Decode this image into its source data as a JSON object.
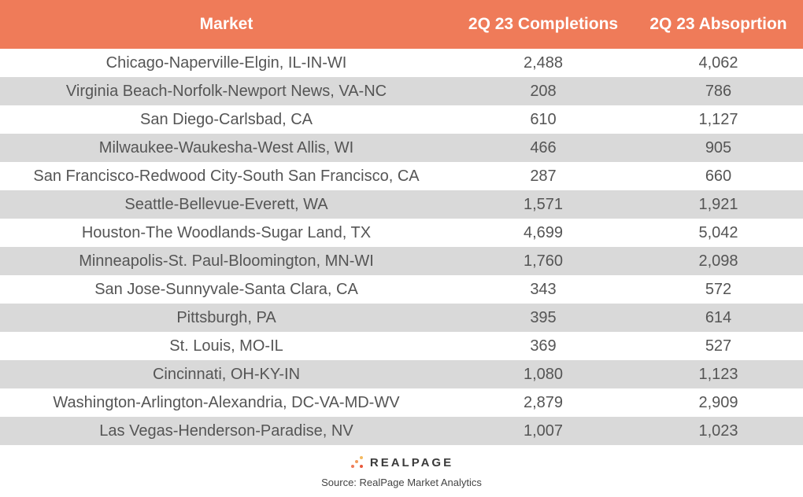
{
  "colors": {
    "header_bg": "#ef7b59",
    "alt_row_bg": "#d9d9d9"
  },
  "columns": {
    "market": "Market",
    "completions": "2Q 23 Completions",
    "absorption": "2Q 23 Absoprtion"
  },
  "rows": [
    {
      "market": "Chicago-Naperville-Elgin, IL-IN-WI",
      "completions": "2,488",
      "absorption": "4,062"
    },
    {
      "market": "Virginia Beach-Norfolk-Newport News, VA-NC",
      "completions": "208",
      "absorption": "786"
    },
    {
      "market": "San Diego-Carlsbad, CA",
      "completions": "610",
      "absorption": "1,127"
    },
    {
      "market": "Milwaukee-Waukesha-West Allis, WI",
      "completions": "466",
      "absorption": "905"
    },
    {
      "market": "San Francisco-Redwood City-South San Francisco, CA",
      "completions": "287",
      "absorption": "660"
    },
    {
      "market": "Seattle-Bellevue-Everett, WA",
      "completions": "1,571",
      "absorption": "1,921"
    },
    {
      "market": "Houston-The Woodlands-Sugar Land, TX",
      "completions": "4,699",
      "absorption": "5,042"
    },
    {
      "market": "Minneapolis-St. Paul-Bloomington, MN-WI",
      "completions": "1,760",
      "absorption": "2,098"
    },
    {
      "market": "San Jose-Sunnyvale-Santa Clara, CA",
      "completions": "343",
      "absorption": "572"
    },
    {
      "market": "Pittsburgh, PA",
      "completions": "395",
      "absorption": "614"
    },
    {
      "market": "St. Louis, MO-IL",
      "completions": "369",
      "absorption": "527"
    },
    {
      "market": "Cincinnati, OH-KY-IN",
      "completions": "1,080",
      "absorption": "1,123"
    },
    {
      "market": "Washington-Arlington-Alexandria, DC-VA-MD-WV",
      "completions": "2,879",
      "absorption": "2,909"
    },
    {
      "market": "Las Vegas-Henderson-Paradise, NV",
      "completions": "1,007",
      "absorption": "1,023"
    }
  ],
  "logo": {
    "text": "REALPAGE",
    "icon": "dots-logo-icon"
  },
  "source": "Source: RealPage Market Analytics",
  "chart_data": {
    "type": "table",
    "columns": [
      "Market",
      "2Q 23 Completions",
      "2Q 23 Absoprtion"
    ],
    "rows": [
      [
        "Chicago-Naperville-Elgin, IL-IN-WI",
        2488,
        4062
      ],
      [
        "Virginia Beach-Norfolk-Newport News, VA-NC",
        208,
        786
      ],
      [
        "San Diego-Carlsbad, CA",
        610,
        1127
      ],
      [
        "Milwaukee-Waukesha-West Allis, WI",
        466,
        905
      ],
      [
        "San Francisco-Redwood City-South San Francisco, CA",
        287,
        660
      ],
      [
        "Seattle-Bellevue-Everett, WA",
        1571,
        1921
      ],
      [
        "Houston-The Woodlands-Sugar Land, TX",
        4699,
        5042
      ],
      [
        "Minneapolis-St. Paul-Bloomington, MN-WI",
        1760,
        2098
      ],
      [
        "San Jose-Sunnyvale-Santa Clara, CA",
        343,
        572
      ],
      [
        "Pittsburgh, PA",
        395,
        614
      ],
      [
        "St. Louis, MO-IL",
        369,
        527
      ],
      [
        "Cincinnati, OH-KY-IN",
        1080,
        1123
      ],
      [
        "Washington-Arlington-Alexandria, DC-VA-MD-WV",
        2879,
        2909
      ],
      [
        "Las Vegas-Henderson-Paradise, NV",
        1007,
        1023
      ]
    ]
  }
}
